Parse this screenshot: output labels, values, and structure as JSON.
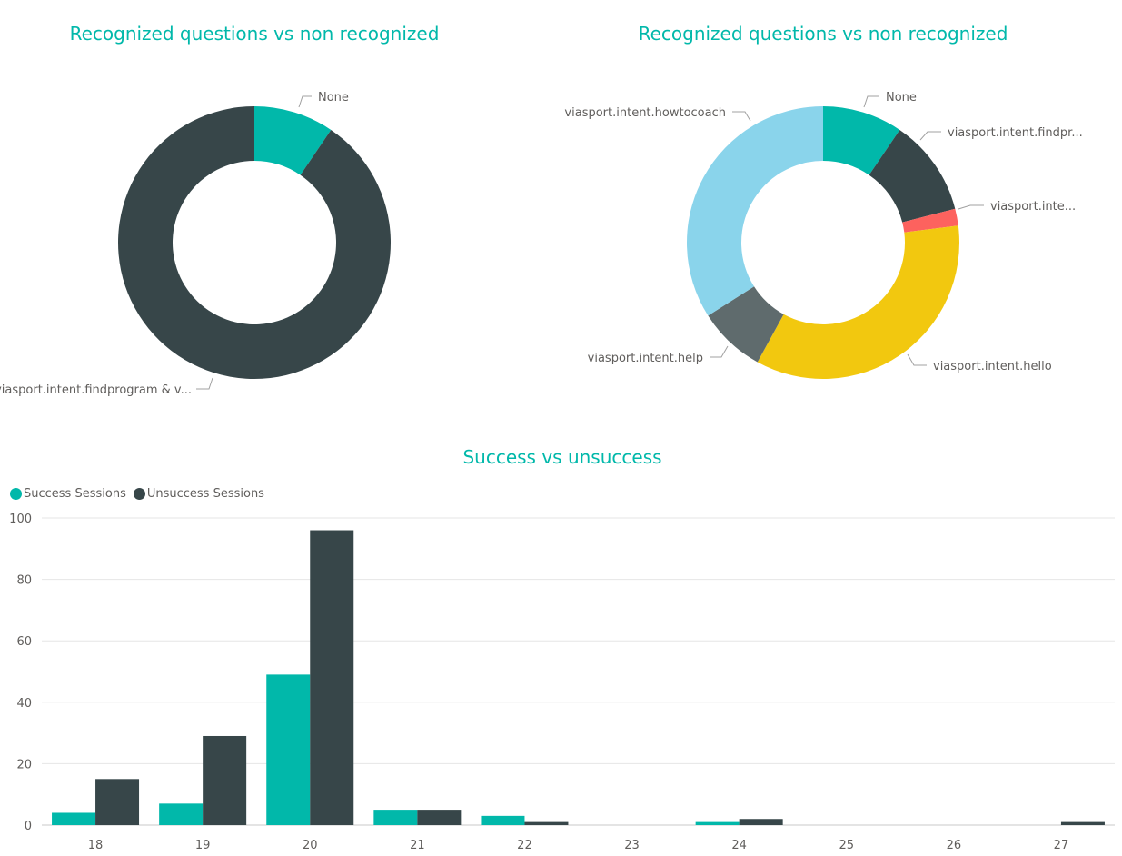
{
  "colors": {
    "title": "#01B8AA",
    "teal": "#01B8AA",
    "dark": "#374649",
    "red": "#FD625E",
    "yellow": "#F2C80F",
    "gray": "#5F6B6D",
    "lightblue": "#8AD4EB",
    "axis_text": "#605E5C",
    "grid": "#E6E6E6"
  },
  "chart_data": [
    {
      "type": "pie",
      "variant": "donut",
      "title": "Recognized questions vs non recognized",
      "slices": [
        {
          "label": "None",
          "value": 9.5,
          "color": "#01B8AA"
        },
        {
          "label": "viasport.intent.findprogram & v...",
          "value": 90.5,
          "color": "#374649"
        }
      ]
    },
    {
      "type": "pie",
      "variant": "donut",
      "title": "Recognized questions vs non recognized",
      "slices": [
        {
          "label": "None",
          "value": 9.5,
          "color": "#01B8AA"
        },
        {
          "label": "viasport.intent.findpr...",
          "value": 11.5,
          "color": "#374649"
        },
        {
          "label": "viasport.inte...",
          "value": 2.0,
          "color": "#FD625E"
        },
        {
          "label": "viasport.intent.hello",
          "value": 35.0,
          "color": "#F2C80F"
        },
        {
          "label": "viasport.intent.help",
          "value": 8.0,
          "color": "#5F6B6D"
        },
        {
          "label": "viasport.intent.howtocoach",
          "value": 34.0,
          "color": "#8AD4EB"
        }
      ]
    },
    {
      "type": "bar",
      "title": "Success vs unsuccess",
      "categories": [
        "18",
        "19",
        "20",
        "21",
        "22",
        "23",
        "24",
        "25",
        "26",
        "27"
      ],
      "series": [
        {
          "name": "Success Sessions",
          "color": "#01B8AA",
          "values": [
            4,
            7,
            49,
            5,
            3,
            0,
            1,
            0,
            0,
            0
          ]
        },
        {
          "name": "Unsuccess Sessions",
          "color": "#374649",
          "values": [
            15,
            29,
            96,
            5,
            1,
            0,
            2,
            0,
            0,
            1
          ]
        }
      ],
      "ylim": [
        0,
        100
      ],
      "yticks": [
        0,
        20,
        40,
        60,
        80,
        100
      ],
      "grid": true,
      "legend_position": "top-left"
    }
  ]
}
